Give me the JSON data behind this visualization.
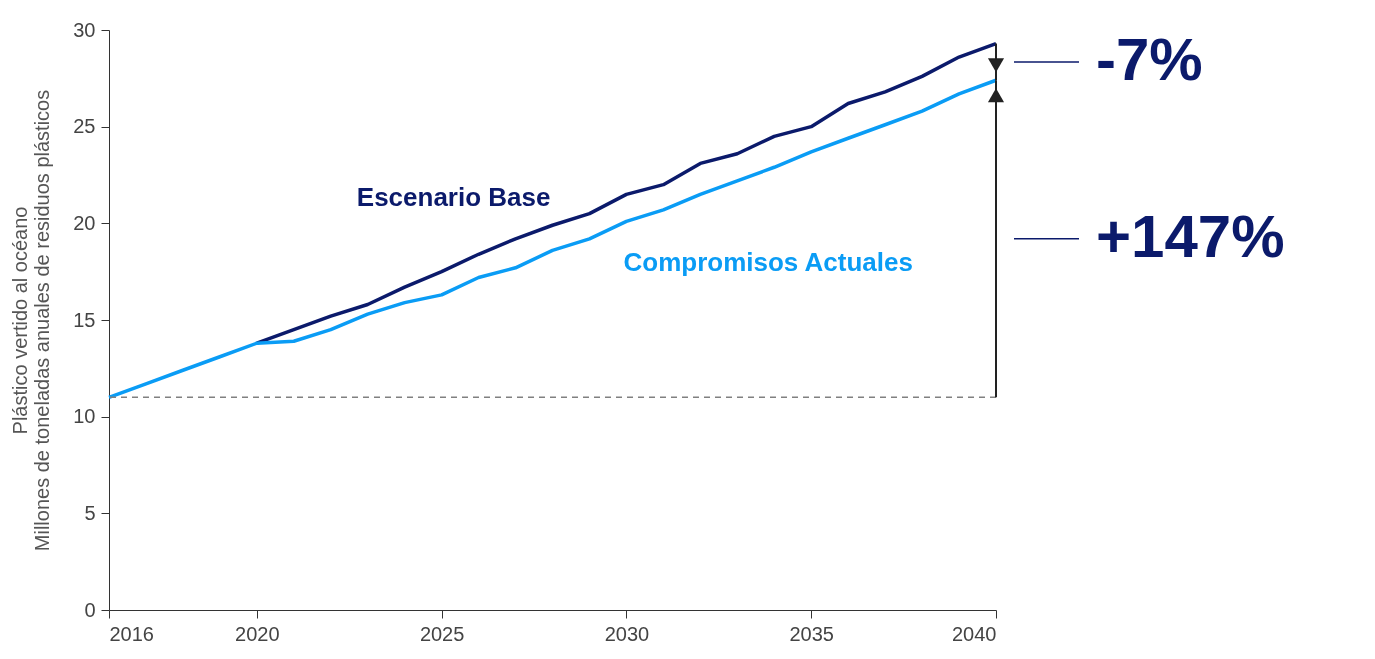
{
  "chart_data": {
    "type": "line",
    "ylabel": "Plástico vertido al océano\nMillones de toneladas anuales de residuos plásticos",
    "x": [
      2016,
      2017,
      2018,
      2019,
      2020,
      2021,
      2022,
      2023,
      2024,
      2025,
      2026,
      2027,
      2028,
      2029,
      2030,
      2031,
      2032,
      2033,
      2034,
      2035,
      2036,
      2037,
      2038,
      2039,
      2040
    ],
    "series": [
      {
        "name": "Escenario Base",
        "color": "#0b1a6b",
        "values": [
          null,
          null,
          null,
          null,
          13.8,
          14.5,
          15.2,
          15.8,
          16.7,
          17.5,
          18.4,
          19.2,
          19.9,
          20.5,
          21.5,
          22.0,
          23.1,
          23.6,
          24.5,
          25.0,
          26.2,
          26.8,
          27.6,
          28.6,
          29.3
        ]
      },
      {
        "name": "Compromisos Actuales",
        "color": "#0a9cf5",
        "values": [
          11.0,
          11.7,
          12.4,
          13.1,
          13.8,
          13.9,
          14.5,
          15.3,
          15.9,
          16.3,
          17.2,
          17.7,
          18.6,
          19.2,
          20.1,
          20.7,
          21.5,
          22.2,
          22.9,
          23.7,
          24.4,
          25.1,
          25.8,
          26.7,
          27.4
        ]
      }
    ],
    "xlim": [
      2016,
      2040
    ],
    "xticks": [
      2016,
      2020,
      2025,
      2030,
      2035,
      2040
    ],
    "ylim": [
      0,
      30
    ],
    "yticks": [
      0,
      5,
      10,
      15,
      20,
      25,
      30
    ],
    "ref_lines": [
      {
        "axis": "y",
        "value": 11,
        "color": "#808080",
        "line_style": "dashed"
      }
    ],
    "annotations": [
      "-7%",
      "+147%"
    ],
    "grid": false,
    "legend": false,
    "marker": "none",
    "line_style": "solid"
  }
}
